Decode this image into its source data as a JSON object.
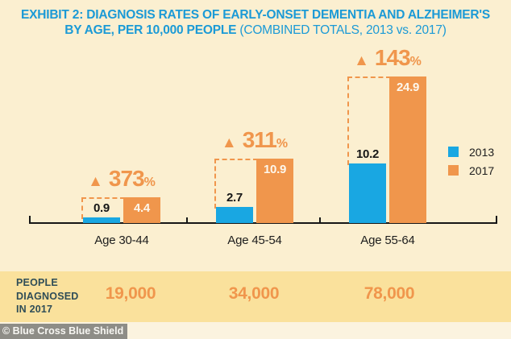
{
  "title": {
    "line1": "EXHIBIT 2: DIAGNOSIS RATES OF EARLY-ONSET DEMENTIA AND ALZHEIMER'S",
    "line2_bold": "BY AGE, PER 10,000 PEOPLE",
    "line2_light": "(COMBINED TOTALS, 2013 vs. 2017)"
  },
  "chart_data": {
    "type": "bar",
    "title": "Diagnosis rates of early-onset dementia and Alzheimer's by age, per 10,000 people (combined totals, 2013 vs. 2017)",
    "categories": [
      "Age 30-44",
      "Age 45-54",
      "Age 55-64"
    ],
    "series": [
      {
        "name": "2013",
        "color": "#19A7E2",
        "values": [
          0.9,
          2.7,
          10.2
        ]
      },
      {
        "name": "2017",
        "color": "#F0964C",
        "values": [
          4.4,
          10.9,
          24.9
        ]
      }
    ],
    "pct_increase": [
      "373",
      "311",
      "143"
    ],
    "pct_symbol": "%",
    "increase_arrow_icon": "▲",
    "xlabel": "",
    "ylabel": "",
    "ylim": [
      0,
      26
    ],
    "grid": false,
    "legend_position": "right"
  },
  "footer_strip": {
    "label_lines": [
      "PEOPLE",
      "DIAGNOSED",
      "IN 2017"
    ],
    "values": [
      "19,000",
      "34,000",
      "78,000"
    ]
  },
  "credit": "© Blue Cross Blue Shield",
  "colors": {
    "background": "#FBEFD0",
    "strip_background": "#FAE19C",
    "bottom_band": "#FBF3DF",
    "blue_2013": "#19A7E2",
    "orange_2017": "#F0964C",
    "title_blue": "#1B9AD6",
    "strip_label_teal": "#2F4D57",
    "credit_bar_gray": "#8E8D87",
    "axis": "#161616"
  }
}
